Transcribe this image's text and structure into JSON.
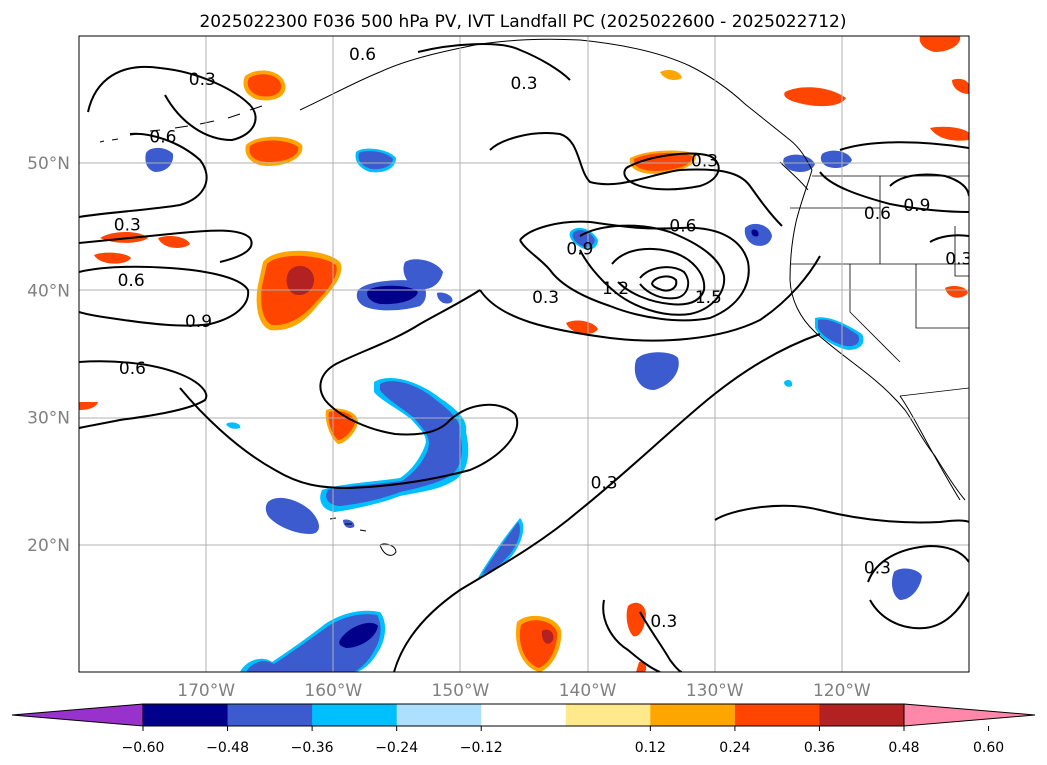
{
  "map": {
    "title": "2025022300 F036 500 hPa PV, IVT Landfall PC (2025022600 - 2025022712)",
    "region": "North Pacific and western North America",
    "projection": "equirectangular",
    "lon_range": [
      -180,
      -110
    ],
    "lat_range": [
      10,
      60
    ],
    "grid": true,
    "lat_ticks": [
      {
        "value": 20,
        "label": "20°N"
      },
      {
        "value": 30,
        "label": "30°N"
      },
      {
        "value": 40,
        "label": "40°N"
      },
      {
        "value": 50,
        "label": "50°N"
      }
    ],
    "lon_ticks": [
      {
        "value": -170,
        "label": "170°W"
      },
      {
        "value": -160,
        "label": "160°W"
      },
      {
        "value": -150,
        "label": "150°W"
      },
      {
        "value": -140,
        "label": "140°W"
      },
      {
        "value": -130,
        "label": "130°W"
      },
      {
        "value": -120,
        "label": "120°W"
      }
    ],
    "contour_labels": [
      {
        "text": "0.3",
        "lon": -170.3,
        "lat": 56.6
      },
      {
        "text": "0.6",
        "lon": -157.7,
        "lat": 58.6
      },
      {
        "text": "0.3",
        "lon": -145.0,
        "lat": 56.3
      },
      {
        "text": "0.6",
        "lon": -173.4,
        "lat": 52.1
      },
      {
        "text": "0.3",
        "lon": -176.2,
        "lat": 45.2
      },
      {
        "text": "0.6",
        "lon": -175.9,
        "lat": 40.8
      },
      {
        "text": "0.9",
        "lon": -170.6,
        "lat": 37.6
      },
      {
        "text": "0.6",
        "lon": -175.8,
        "lat": 33.9
      },
      {
        "text": "0.3",
        "lon": -130.8,
        "lat": 50.2
      },
      {
        "text": "0.6",
        "lon": -132.5,
        "lat": 45.1
      },
      {
        "text": "0.9",
        "lon": -140.6,
        "lat": 43.3
      },
      {
        "text": "1.2",
        "lon": -137.8,
        "lat": 40.2
      },
      {
        "text": "1.5",
        "lon": -130.5,
        "lat": 39.5
      },
      {
        "text": "0.3",
        "lon": -143.3,
        "lat": 39.5
      },
      {
        "text": "0.6",
        "lon": -117.2,
        "lat": 46.1
      },
      {
        "text": "0.9",
        "lon": -114.1,
        "lat": 46.7
      },
      {
        "text": "0.3",
        "lon": -110.8,
        "lat": 42.5
      },
      {
        "text": "0.3",
        "lon": -138.7,
        "lat": 24.9
      },
      {
        "text": "0.3",
        "lon": -117.2,
        "lat": 18.2
      },
      {
        "text": "0.3",
        "lon": -134.0,
        "lat": 14.0
      }
    ],
    "colorbar": {
      "ticks": [
        "−0.60",
        "−0.48",
        "−0.36",
        "−0.24",
        "−0.12",
        "0.12",
        "0.24",
        "0.36",
        "0.48",
        "0.60"
      ],
      "colors": [
        "#9932CC",
        "#00008B",
        "#3B5BCF",
        "#00BFFF",
        "#ADDFFF",
        "#FFFFFF",
        "#FFE98A",
        "#FFA500",
        "#FF4500",
        "#B22222",
        "#FF88AA"
      ]
    }
  }
}
